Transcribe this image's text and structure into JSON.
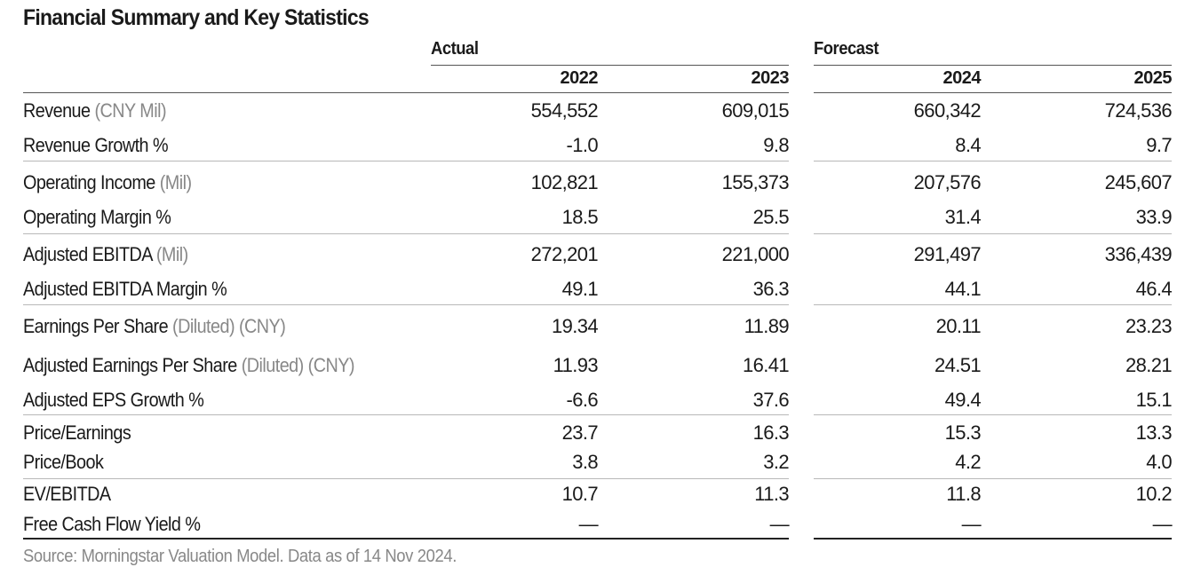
{
  "title": "Financial Summary and Key Statistics",
  "groups": {
    "actual": "Actual",
    "forecast": "Forecast"
  },
  "years": [
    "2022",
    "2023",
    "2024",
    "2025"
  ],
  "rows": [
    {
      "label": "Revenue",
      "unit": "(CNY Mil)",
      "values": [
        "554,552",
        "609,015",
        "660,342",
        "724,536"
      ]
    },
    {
      "label": "Revenue Growth %",
      "unit": "",
      "values": [
        "-1.0",
        "9.8",
        "8.4",
        "9.7"
      ]
    },
    {
      "label": "Operating Income",
      "unit": "(Mil)",
      "values": [
        "102,821",
        "155,373",
        "207,576",
        "245,607"
      ]
    },
    {
      "label": "Operating Margin %",
      "unit": "",
      "values": [
        "18.5",
        "25.5",
        "31.4",
        "33.9"
      ]
    },
    {
      "label": "Adjusted EBITDA",
      "unit": "(Mil)",
      "values": [
        "272,201",
        "221,000",
        "291,497",
        "336,439"
      ]
    },
    {
      "label": "Adjusted EBITDA Margin %",
      "unit": "",
      "values": [
        "49.1",
        "36.3",
        "44.1",
        "46.4"
      ]
    },
    {
      "label": "Earnings Per Share",
      "unit": "(Diluted) (CNY)",
      "values": [
        "19.34",
        "11.89",
        "20.11",
        "23.23"
      ]
    },
    {
      "label": "Adjusted Earnings Per Share",
      "unit": "(Diluted) (CNY)",
      "values": [
        "11.93",
        "16.41",
        "24.51",
        "28.21"
      ]
    },
    {
      "label": "Adjusted EPS Growth %",
      "unit": "",
      "values": [
        "-6.6",
        "37.6",
        "49.4",
        "15.1"
      ]
    },
    {
      "label": "Price/Earnings",
      "unit": "",
      "values": [
        "23.7",
        "16.3",
        "15.3",
        "13.3"
      ]
    },
    {
      "label": "Price/Book",
      "unit": "",
      "values": [
        "3.8",
        "3.2",
        "4.2",
        "4.0"
      ]
    },
    {
      "label": "EV/EBITDA",
      "unit": "",
      "values": [
        "10.7",
        "11.3",
        "11.8",
        "10.2"
      ]
    },
    {
      "label": "Free Cash Flow Yield %",
      "unit": "",
      "values": [
        "—",
        "—",
        "—",
        "—"
      ]
    }
  ],
  "source": "Source: Morningstar Valuation Model. Data as of 14 Nov 2024."
}
